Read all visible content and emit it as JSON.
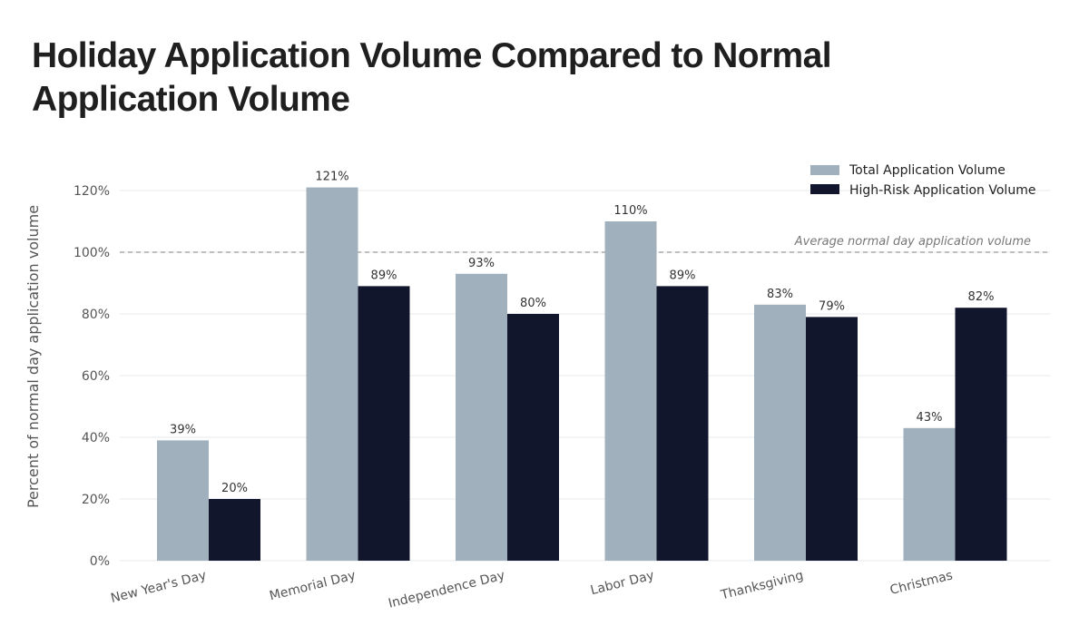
{
  "chart_data": {
    "type": "bar",
    "title": "Holiday Application Volume Compared to Normal Application Volume",
    "xlabel": "",
    "ylabel": "Percent of normal day application volume",
    "ylim": [
      0,
      125
    ],
    "yticks": [
      0,
      20,
      40,
      60,
      80,
      100,
      120
    ],
    "ytick_labels": [
      "0%",
      "20%",
      "40%",
      "60%",
      "80%",
      "100%",
      "120%"
    ],
    "categories": [
      "New Year's Day",
      "Memorial Day",
      "Independence Day",
      "Labor Day",
      "Thanksgiving",
      "Christmas"
    ],
    "series": [
      {
        "name": "Total Application Volume",
        "color": "#a0b0bd",
        "values": [
          39,
          121,
          93,
          110,
          83,
          43
        ],
        "labels": [
          "39%",
          "121%",
          "93%",
          "110%",
          "83%",
          "43%"
        ]
      },
      {
        "name": "High-Risk Application Volume",
        "color": "#12162c",
        "values": [
          20,
          89,
          80,
          89,
          79,
          82
        ],
        "labels": [
          "20%",
          "89%",
          "80%",
          "89%",
          "79%",
          "82%"
        ]
      }
    ],
    "reference_line": {
      "value": 100,
      "label": "Average normal day application volume",
      "color": "#999999"
    },
    "grid": true,
    "legend_position": "top-right"
  }
}
